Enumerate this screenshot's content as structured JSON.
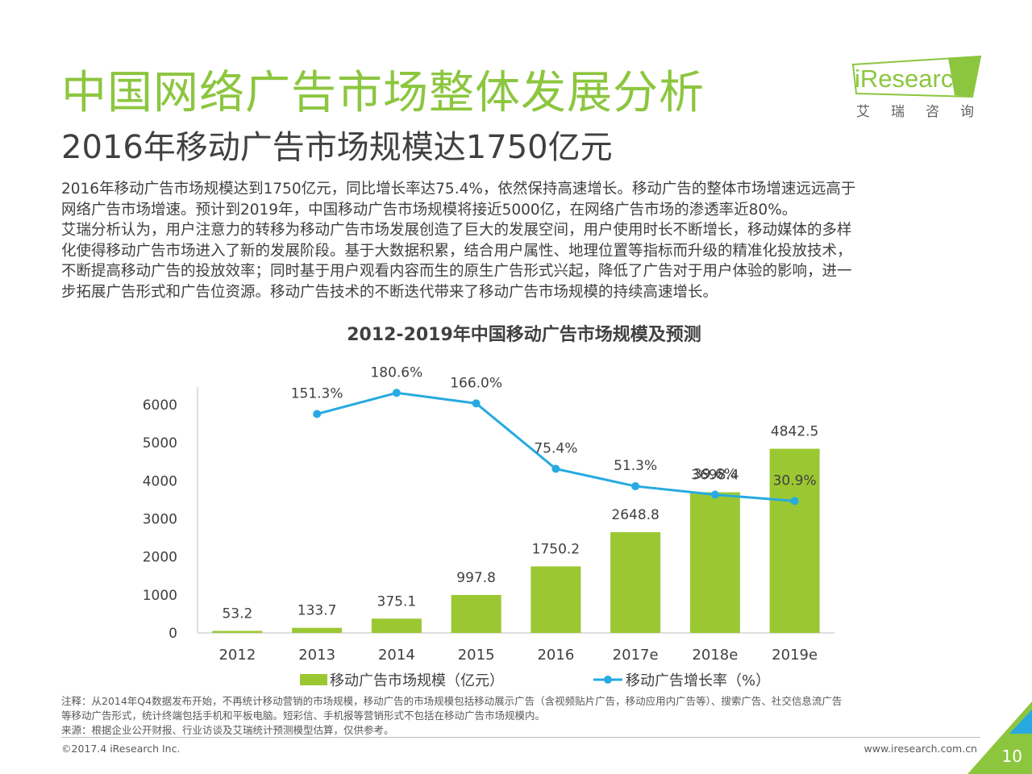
{
  "header": {
    "title": "中国网络广告市场整体发展分析",
    "subtitle": "2016年移动广告市场规模达1750亿元"
  },
  "logo": {
    "text": "iResearch",
    "subtext": "艾瑞咨询"
  },
  "body": {
    "lines": [
      "2016年移动广告市场规模达到1750亿元，同比增长率达75.4%，依然保持高速增长。移动广告的整体市场增速远远高于",
      "网络广告市场增速。预计到2019年，中国移动广告市场规模将接近5000亿，在网络广告市场的渗透率近80%。",
      "艾瑞分析认为，用户注意力的转移为移动广告市场发展创造了巨大的发展空间，用户使用时长不断增长，移动媒体的多样",
      "化使得移动广告市场进入了新的发展阶段。基于大数据积累，结合用户属性、地理位置等指标而升级的精准化投放技术，",
      "不断提高移动广告的投放效率；同时基于用户观看内容而生的原生广告形式兴起，降低了广告对于用户体验的影响，进一",
      "步拓展广告形式和广告位资源。移动广告技术的不断迭代带来了移动广告市场规模的持续高速增长。"
    ]
  },
  "chart_data": {
    "type": "bar+line",
    "title": "2012-2019年中国移动广告市场规模及预测",
    "categories": [
      "2012",
      "2013",
      "2014",
      "2015",
      "2016",
      "2017e",
      "2018e",
      "2019e"
    ],
    "series": [
      {
        "name": "移动广告市场规模（亿元）",
        "type": "bar",
        "axis": "left",
        "color": "#9bc832",
        "values": [
          53.2,
          133.7,
          375.1,
          997.8,
          1750.2,
          2648.8,
          3698.4,
          4842.5
        ],
        "labels": [
          "53.2",
          "133.7",
          "375.1",
          "997.8",
          "1750.2",
          "2648.8",
          "3698.4",
          "4842.5"
        ]
      },
      {
        "name": "移动广告增长率（%）",
        "type": "line",
        "axis": "right",
        "color": "#27aae1",
        "values": [
          null,
          151.3,
          180.6,
          166.0,
          75.4,
          51.3,
          39.6,
          30.9
        ],
        "labels": [
          null,
          "151.3%",
          "180.6%",
          "166.0%",
          "75.4%",
          "51.3%",
          "39.6%",
          "30.9%"
        ]
      }
    ],
    "y_ticks": [
      "0",
      "1000",
      "2000",
      "3000",
      "4000",
      "5000",
      "6000"
    ],
    "ylim": [
      0,
      6000
    ],
    "legend": "bottom",
    "grid": false
  },
  "notes": {
    "lines": [
      "注释：从2014年Q4数据发布开始，不再统计移动营销的市场规模，移动广告的市场规模包括移动展示广告（含视频贴片广告，移动应用内广告等）、搜索广告、社交信息流广告",
      "等移动广告形式，统计终端包括手机和平板电脑。短彩信、手机报等营销形式不包括在移动广告市场规模内。",
      "来源：根据企业公开财报、行业访谈及艾瑞统计预测模型估算，仅供参考。"
    ]
  },
  "footer": {
    "copyright": "©2017.4 iResearch Inc.",
    "website": "www.iresearch.com.cn",
    "page_number": "10"
  },
  "colors": {
    "accent_green": "#8cc63f",
    "bar_green": "#9bc832",
    "line_blue": "#27aae1",
    "text": "#404040"
  }
}
